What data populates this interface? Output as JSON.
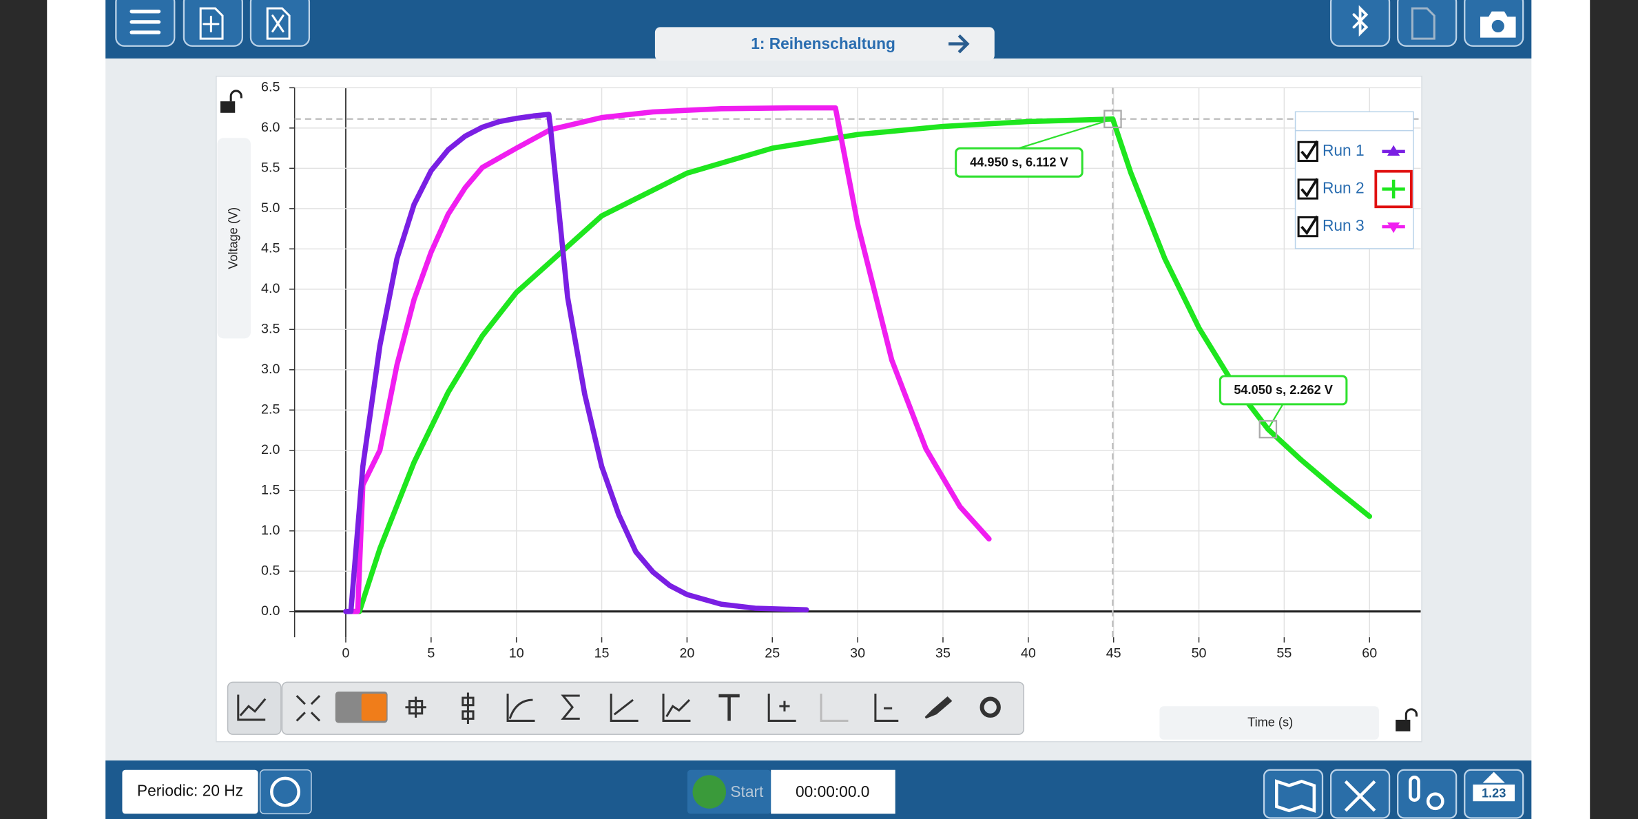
{
  "header": {
    "tab_title": "1: Reihenschaltung"
  },
  "chart_data": {
    "type": "line",
    "x_label": "Time (s)",
    "y_label": "Voltage (V)",
    "xlim": [
      -3,
      63
    ],
    "ylim": [
      -0.32,
      6.5
    ],
    "xticks": [
      0,
      5,
      10,
      15,
      20,
      25,
      30,
      35,
      40,
      45,
      50,
      55,
      60
    ],
    "yticks": [
      {
        "value": 0,
        "label": "0.0"
      },
      0.5,
      {
        "value": 1,
        "label": "1.0"
      },
      1.5,
      {
        "value": 2,
        "label": "2.0"
      },
      2.5,
      {
        "value": 3,
        "label": "3.0"
      },
      3.5,
      {
        "value": 4,
        "label": "4.0"
      },
      4.5,
      {
        "value": 5,
        "label": "5.0"
      },
      5.5,
      {
        "value": 6,
        "label": "6.0"
      },
      6.5
    ],
    "grid": true,
    "series": [
      {
        "name": "Run 1",
        "color": "#7a1fe3",
        "marker": "triangle-up",
        "x": [
          0,
          0.3,
          1,
          2,
          3,
          4,
          5,
          6,
          7,
          8,
          9,
          10,
          11,
          11.9,
          12,
          13,
          14,
          15,
          16,
          17,
          18,
          19,
          20,
          22,
          24,
          27
        ],
        "values": [
          0,
          0,
          1.8,
          3.3,
          4.38,
          5.05,
          5.47,
          5.73,
          5.9,
          6.01,
          6.08,
          6.12,
          6.15,
          6.17,
          6.0,
          3.9,
          2.7,
          1.8,
          1.2,
          0.74,
          0.49,
          0.32,
          0.21,
          0.09,
          0.04,
          0.02
        ]
      },
      {
        "name": "Run 2",
        "color": "#1ee61e",
        "marker": "plus",
        "x": [
          0.3,
          0.8,
          2,
          4,
          6,
          8,
          10,
          15,
          20,
          25,
          30,
          35,
          40,
          44.95,
          46,
          48,
          50,
          52,
          54.05,
          56,
          58,
          60
        ],
        "values": [
          0,
          0,
          0.78,
          1.85,
          2.72,
          3.42,
          3.96,
          4.91,
          5.44,
          5.75,
          5.92,
          6.02,
          6.08,
          6.112,
          5.45,
          4.38,
          3.52,
          2.83,
          2.262,
          1.88,
          1.52,
          1.18
        ]
      },
      {
        "name": "Run 3",
        "color": "#f01ef0",
        "marker": "triangle-down",
        "x": [
          0.2,
          0.7,
          1,
          2,
          3,
          4,
          5,
          6,
          7,
          8,
          10,
          12,
          15,
          18,
          22,
          26,
          28.7,
          30,
          32,
          34,
          36,
          37.7
        ],
        "values": [
          0,
          0,
          1.57,
          2.0,
          3.06,
          3.87,
          4.46,
          4.93,
          5.26,
          5.51,
          5.75,
          5.98,
          6.13,
          6.2,
          6.24,
          6.25,
          6.25,
          4.81,
          3.12,
          2.02,
          1.3,
          0.9
        ]
      }
    ],
    "annotations": [
      {
        "label": "44.950 s, 6.112 V",
        "x": 44.95,
        "y": 6.112
      },
      {
        "label": "54.050 s, 2.262 V",
        "x": 54.05,
        "y": 2.262
      }
    ]
  },
  "footer": {
    "sample_rate": "Periodic: 20 Hz",
    "start_button": "Start",
    "timer": "00:00:00.0",
    "meter_value": "1.23"
  }
}
